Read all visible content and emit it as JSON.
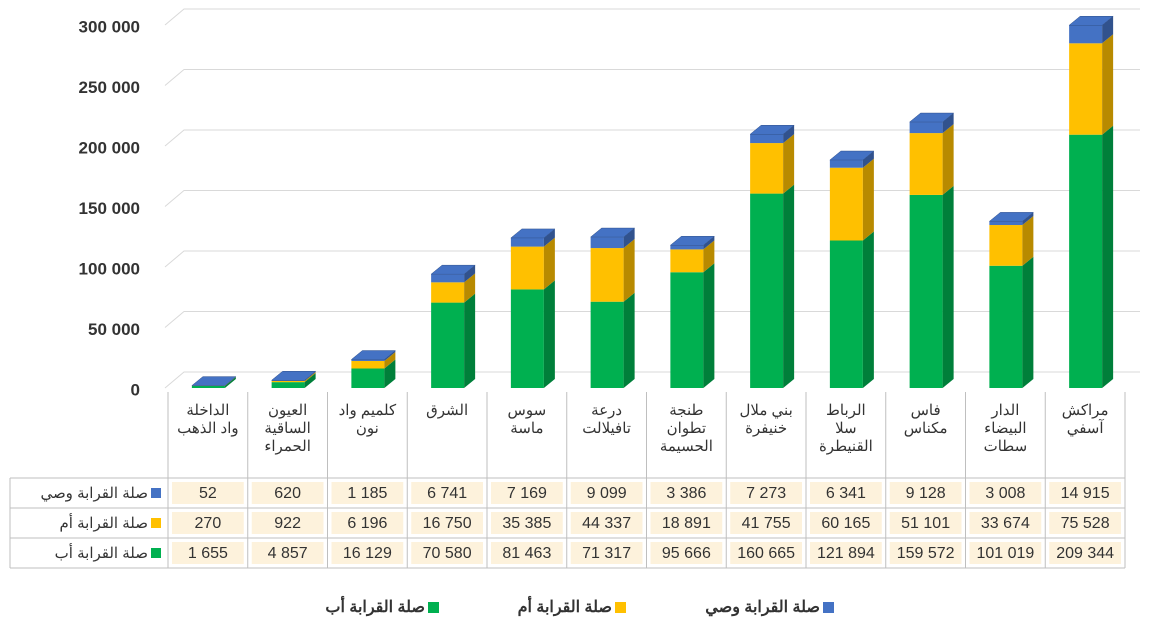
{
  "chart_data": {
    "type": "bar",
    "stacked": true,
    "categories": [
      "الداخلة واد الذهب",
      "العيون الساقية الحمراء",
      "كلميم واد نون",
      "الشرق",
      "سوس ماسة",
      "درعة تافيلالت",
      "طنجة تطوان الحسيمة",
      "بني ملال خنيفرة",
      "الرباط سلا القنيطرة",
      "فاس مكناس",
      "الدار البيضاء سطات",
      "مراكش آسفي"
    ],
    "series": [
      {
        "name": "صلة القرابة أب",
        "color": "#00b050",
        "values": [
          1655,
          4857,
          16129,
          70580,
          81463,
          71317,
          95666,
          160665,
          121894,
          159572,
          101019,
          209344
        ],
        "value_labels": [
          "1 655",
          "4 857",
          "16 129",
          "70 580",
          "81 463",
          "71 317",
          "95 666",
          "160 665",
          "121 894",
          "159 572",
          "101 019",
          "209 344"
        ]
      },
      {
        "name": "صلة القرابة أم",
        "color": "#ffc000",
        "values": [
          270,
          922,
          6196,
          16750,
          35385,
          44337,
          18891,
          41755,
          60165,
          51101,
          33674,
          75528
        ],
        "value_labels": [
          "270",
          "922",
          "6 196",
          "16 750",
          "35 385",
          "44 337",
          "18 891",
          "41 755",
          "60 165",
          "51 101",
          "33 674",
          "75 528"
        ]
      },
      {
        "name": "صلة القرابة وصي",
        "color": "#4472c4",
        "values": [
          52,
          620,
          1185,
          6741,
          7169,
          9099,
          3386,
          7273,
          6341,
          9128,
          3008,
          14915
        ],
        "value_labels": [
          "52",
          "620",
          "1 185",
          "6 741",
          "7 169",
          "9 099",
          "3 386",
          "7 273",
          "6 341",
          "9 128",
          "3 008",
          "14 915"
        ]
      }
    ],
    "ylim": [
      0,
      300000
    ],
    "yticks": [
      0,
      {
        "value": 50000,
        "label": "50 000"
      },
      {
        "value": 100000,
        "label": "100 000"
      },
      {
        "value": 150000,
        "label": "150 000"
      },
      {
        "value": 200000,
        "label": "200 000"
      },
      {
        "value": 250000,
        "label": "250 000"
      },
      {
        "value": 300000,
        "label": "300 000"
      }
    ],
    "grid": true
  }
}
